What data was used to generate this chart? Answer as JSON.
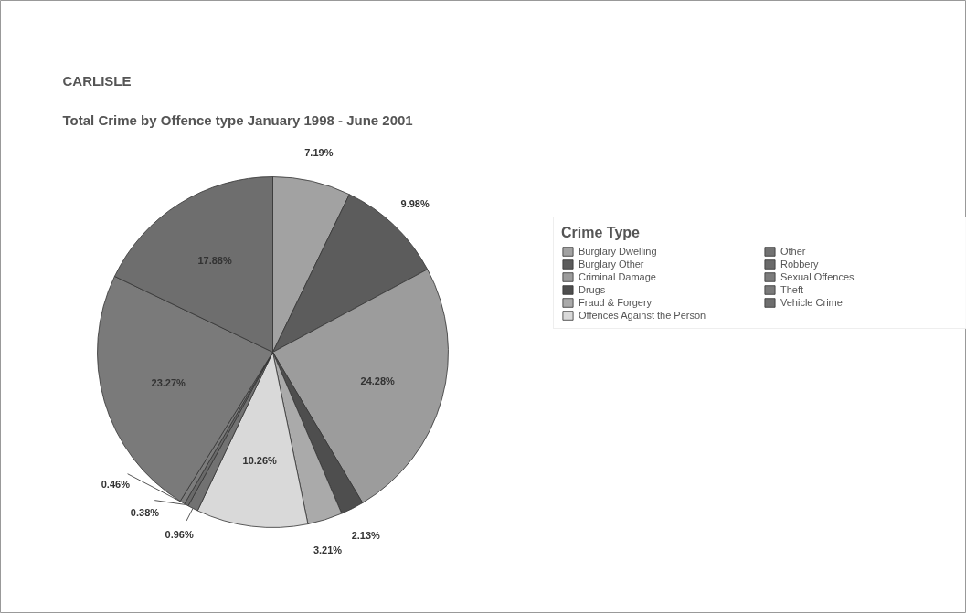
{
  "chart_data": {
    "type": "pie",
    "title": "CARLISLE",
    "subtitle": "Total Crime by Offence type January 1998 - June 2001",
    "legend_title": "Crime Type",
    "legend": "right",
    "categories": [
      "Burglary Dwelling",
      "Burglary Other",
      "Criminal Damage",
      "Drugs",
      "Fraud & Forgery",
      "Offences Against the Person",
      "Other",
      "Robbery",
      "Sexual Offences",
      "Theft",
      "Vehicle Crime"
    ],
    "values": [
      7.19,
      9.98,
      24.28,
      2.13,
      3.21,
      10.26,
      0.96,
      0.38,
      0.46,
      23.27,
      17.88
    ],
    "value_labels": [
      "7.19%",
      "9.98%",
      "24.28%",
      "2.13%",
      "3.21%",
      "10.26%",
      "0.96%",
      "0.38%",
      "0.46%",
      "23.27%",
      "17.88%"
    ],
    "colors": [
      "#a2a2a2",
      "#5c5c5c",
      "#9c9c9c",
      "#4e4e4e",
      "#aaaaaa",
      "#d9d9d9",
      "#727272",
      "#6a6a6a",
      "#7c7c7c",
      "#7a7a7a",
      "#6e6e6e"
    ]
  }
}
